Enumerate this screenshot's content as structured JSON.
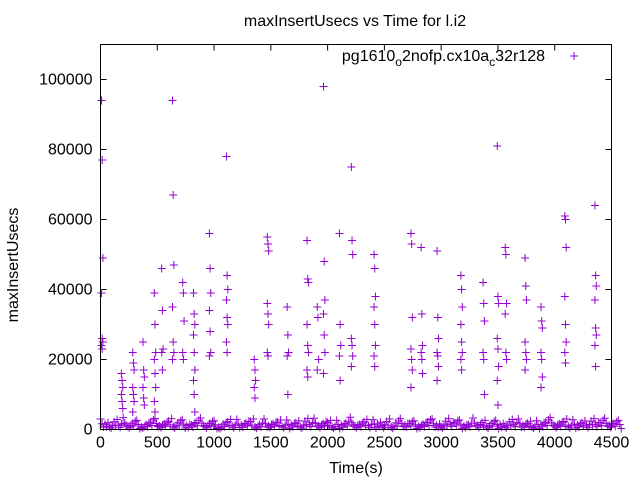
{
  "chart_data": {
    "type": "scatter",
    "title": "maxInsertUsecs vs Time for l.i2",
    "xlabel": "Time(s)",
    "ylabel": "maxInsertUsecs",
    "xlim": [
      0,
      4500
    ],
    "ylim": [
      0,
      110000
    ],
    "xticks": [
      0,
      500,
      1000,
      1500,
      2000,
      2500,
      3000,
      3500,
      4000,
      4500
    ],
    "yticks": [
      0,
      20000,
      40000,
      60000,
      80000,
      100000
    ],
    "grid": false,
    "legend": {
      "position": "top-right",
      "main": "pg1610",
      "sub1": "o",
      "mid": "2nofp.cx10a",
      "sub2": "c",
      "end": "32r128"
    },
    "color": "#9400d3",
    "series": [
      {
        "name": "pg1610_o2nofp.cx10a_c32r128",
        "clusters": [
          {
            "x": 15,
            "y": [
              94000,
              77000,
              49000,
              39000,
              26000,
              25000,
              24000,
              23000
            ]
          },
          {
            "x": 190,
            "y": [
              16000,
              14000,
              12000,
              10000,
              8000,
              6000
            ]
          },
          {
            "x": 290,
            "y": [
              22000,
              19000,
              17000,
              12000,
              10000,
              8000,
              5000
            ]
          },
          {
            "x": 380,
            "y": [
              25000,
              17000,
              15000,
              12000,
              9000,
              7000
            ]
          },
          {
            "x": 480,
            "y": [
              39000,
              30000,
              22000,
              20000,
              16000,
              12000,
              8000,
              5000
            ]
          },
          {
            "x": 545,
            "y": [
              46000,
              34000,
              23000,
              22000,
              17000
            ]
          },
          {
            "x": 640,
            "y": [
              94000,
              67000,
              47000,
              35000,
              25000,
              22000,
              20000
            ]
          },
          {
            "x": 730,
            "y": [
              42000,
              39000,
              31000,
              22000,
              20000
            ]
          },
          {
            "x": 825,
            "y": [
              39000,
              33000,
              30000,
              27000,
              22000,
              17000,
              14000,
              10000,
              5000
            ]
          },
          {
            "x": 965,
            "y": [
              56000,
              46000,
              39000,
              34000,
              28000,
              22000,
              21000
            ]
          },
          {
            "x": 1115,
            "y": [
              78000,
              44000,
              40000,
              37000,
              32000,
              30000,
              25000,
              22000
            ]
          },
          {
            "x": 1360,
            "y": [
              20000,
              17000,
              14000,
              12000,
              9000
            ]
          },
          {
            "x": 1475,
            "y": [
              55000,
              53000,
              51000,
              36000,
              33000,
              30000,
              22000,
              21000
            ]
          },
          {
            "x": 1650,
            "y": [
              35000,
              27000,
              22000,
              21000,
              10000
            ]
          },
          {
            "x": 1825,
            "y": [
              54000,
              43000,
              42000,
              30000,
              24000,
              22000,
              17000,
              15000
            ]
          },
          {
            "x": 1915,
            "y": [
              35000,
              32000,
              20000,
              17000
            ]
          },
          {
            "x": 1970,
            "y": [
              98000,
              48000,
              37000,
              33000,
              27000,
              22000,
              16000
            ]
          },
          {
            "x": 2110,
            "y": [
              56000,
              30000,
              24000,
              21000,
              14000
            ]
          },
          {
            "x": 2215,
            "y": [
              75000,
              54000,
              50000,
              26000,
              24000,
              21000,
              18000
            ]
          },
          {
            "x": 2415,
            "y": [
              50000,
              46000,
              38000,
              35000,
              30000,
              24000,
              21000,
              18000
            ]
          },
          {
            "x": 2740,
            "y": [
              56000,
              53000,
              32000,
              23000,
              20000,
              17000,
              12000
            ]
          },
          {
            "x": 2830,
            "y": [
              52000,
              33000,
              24000,
              22000,
              20000,
              16000
            ]
          },
          {
            "x": 2970,
            "y": [
              51000,
              32000,
              26000,
              22000,
              21000,
              18000,
              14000
            ]
          },
          {
            "x": 3180,
            "y": [
              44000,
              40000,
              35000,
              30000,
              25000,
              22000,
              20000,
              17000
            ]
          },
          {
            "x": 3375,
            "y": [
              42000,
              36000,
              31000,
              22000,
              20000,
              10000
            ]
          },
          {
            "x": 3500,
            "y": [
              81000,
              38000,
              36000,
              26000,
              23000,
              18000,
              14000,
              7000
            ]
          },
          {
            "x": 3570,
            "y": [
              52000,
              50000,
              36000,
              33000,
              22000,
              20000
            ]
          },
          {
            "x": 3745,
            "y": [
              49000,
              41000,
              37000,
              25000,
              22000,
              20000,
              17000
            ]
          },
          {
            "x": 3885,
            "y": [
              35000,
              31000,
              29000,
              22000,
              20000,
              15000,
              12000
            ]
          },
          {
            "x": 4095,
            "y": [
              61000,
              60000,
              52000,
              38000,
              30000,
              25000,
              22000,
              19000
            ]
          },
          {
            "x": 4360,
            "y": [
              64000,
              44000,
              41000,
              37000,
              29000,
              27000,
              24000,
              18000
            ]
          }
        ],
        "baseline_x_step": 40,
        "baseline_y": [
          3000,
          1500,
          800,
          2200,
          1200,
          3400,
          900,
          1800,
          2600,
          700,
          1400,
          2100,
          3100,
          1000,
          1600,
          2400,
          800,
          1900,
          2800,
          1100,
          1300,
          2000,
          3300,
          900,
          1700,
          2500,
          600,
          1500,
          2200,
          1000,
          2900,
          1200,
          1800,
          2300,
          700,
          1400,
          3000,
          1100,
          1600,
          2100,
          900,
          2700,
          1300,
          1900,
          800,
          2400,
          1500,
          3200,
          1000,
          1700,
          2000,
          700,
          2600,
          1200,
          1800,
          3500,
          900,
          1400,
          2200,
          1100,
          2800,
          1600,
          1000,
          2300,
          700,
          1900,
          3100,
          1300,
          1700,
          2500,
          900,
          1500,
          2100,
          3000,
          1200,
          800,
          2400,
          1600,
          1900,
          2700,
          1000,
          1400,
          3300,
          1100,
          2000,
          800,
          1700,
          2600,
          1300,
          900,
          2200,
          1500,
          3000,
          1200,
          1800,
          700,
          2500,
          1400,
          2100,
          3400,
          1000,
          1600,
          2300,
          900,
          2800,
          1300,
          1900,
          1100,
          2400,
          1500,
          2000,
          3200,
          1200,
          1700,
          2600
        ]
      }
    ]
  }
}
